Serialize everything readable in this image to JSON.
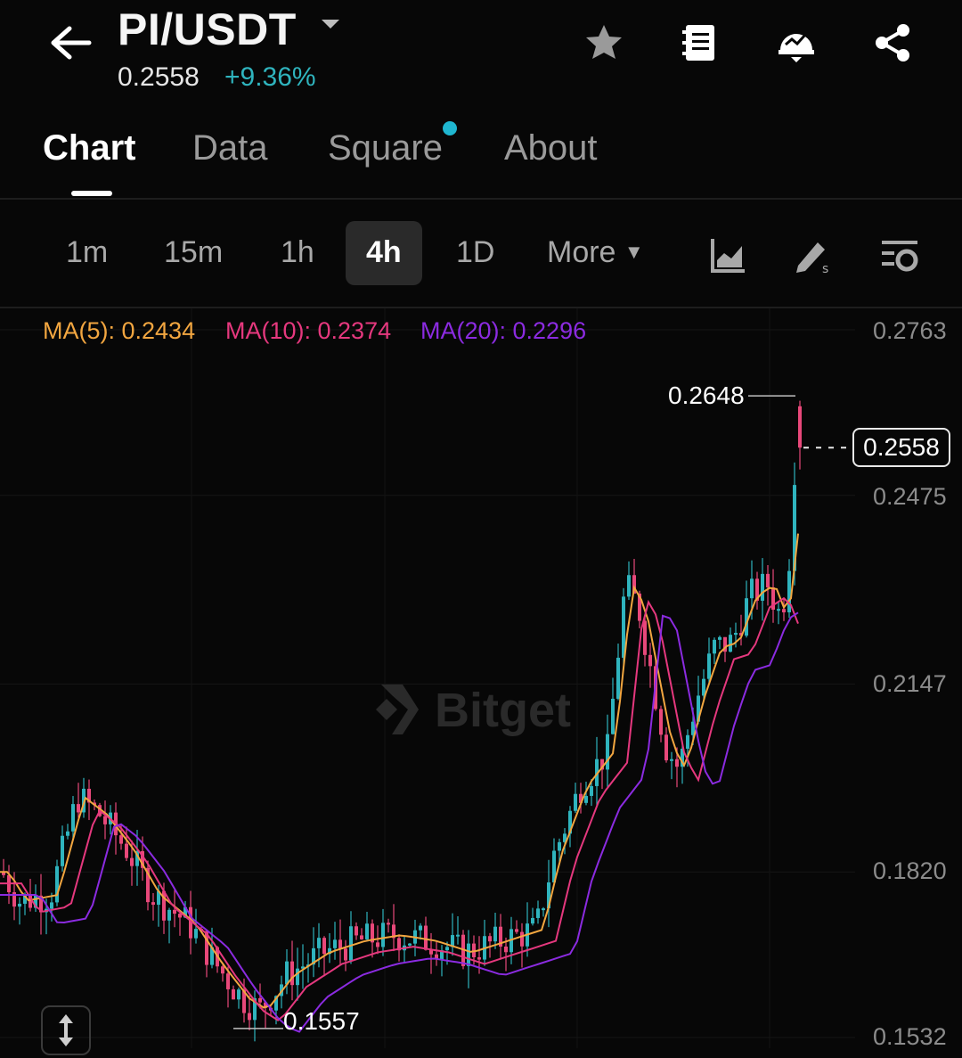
{
  "header": {
    "pair": "PI/USDT",
    "price": "0.2558",
    "change": "+9.36%"
  },
  "tabs": [
    {
      "label": "Chart",
      "active": true
    },
    {
      "label": "Data"
    },
    {
      "label": "Square",
      "has_dot": true
    },
    {
      "label": "About"
    }
  ],
  "timeframes": {
    "items": [
      "1m",
      "15m",
      "1h",
      "4h",
      "1D"
    ],
    "selected": "4h",
    "more_label": "More"
  },
  "colors": {
    "up": "#2fb4be",
    "down": "#e8487a",
    "ma5": "#f2a640",
    "ma10": "#e5387e",
    "ma20": "#8b2be0"
  },
  "chart_data": {
    "type": "candlestick",
    "ma_labels": {
      "ma5": "MA(5): 0.2434",
      "ma10": "MA(10): 0.2374",
      "ma20": "MA(20): 0.2296"
    },
    "y_ticks": [
      "0.2763",
      "0.2475",
      "0.2147",
      "0.1820",
      "0.1532"
    ],
    "high_label": "0.2648",
    "low_label": "0.1557",
    "current_price_label": "0.2558",
    "ylim": [
      0.1532,
      0.2763
    ],
    "grid": true,
    "watermark": "Bitget"
  }
}
